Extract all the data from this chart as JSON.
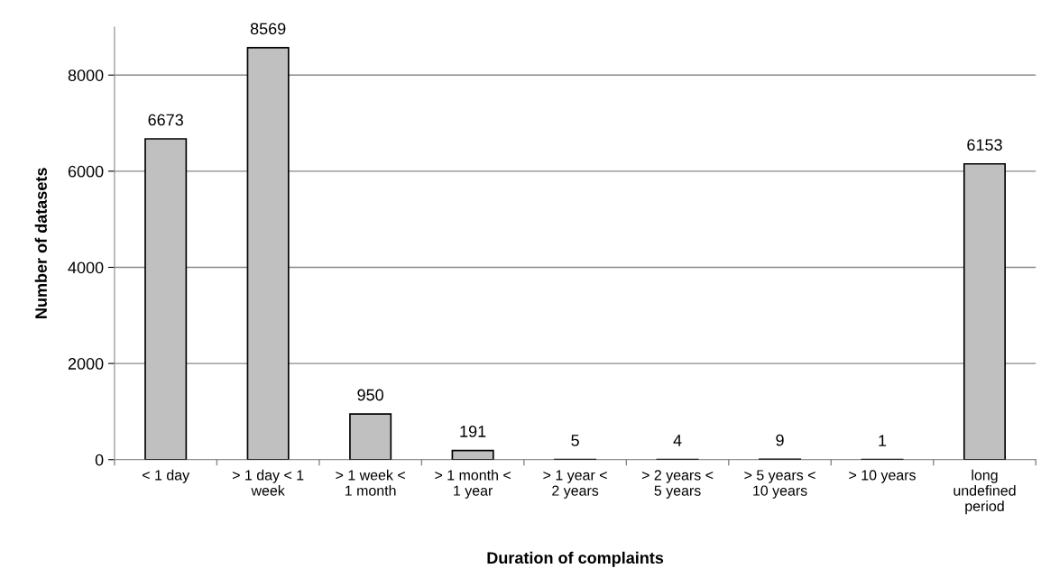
{
  "chart_data": {
    "type": "bar",
    "xlabel": "Duration of complaints",
    "ylabel": "Number of datasets",
    "categories": [
      "< 1 day",
      "> 1 day < 1 week",
      "> 1 week < 1 month",
      "> 1 month < 1 year",
      "> 1 year < 2 years",
      "> 2 years < 5 years",
      "> 5 years < 10 years",
      "> 10 years",
      "long undefined period"
    ],
    "values": [
      6673,
      8569,
      950,
      191,
      5,
      4,
      9,
      1,
      6153
    ],
    "color": "#c0c0c0",
    "data_labels": true,
    "ylim": [
      0,
      9000
    ],
    "yticks": [
      0,
      2000,
      4000,
      6000,
      8000
    ],
    "grid": "y"
  }
}
